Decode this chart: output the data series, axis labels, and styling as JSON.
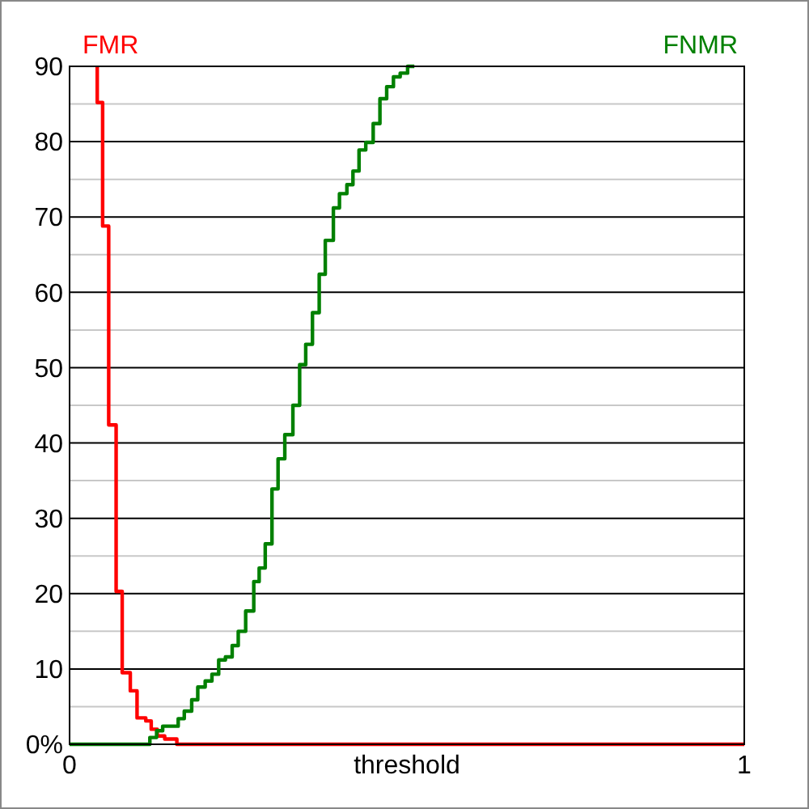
{
  "chart_data": {
    "type": "step",
    "xlabel": "threshold",
    "xlim": [
      0,
      1
    ],
    "xticks": [
      0,
      1
    ],
    "ylim": [
      0,
      90
    ],
    "yticks": [
      {
        "value": 0,
        "label": "0%"
      },
      {
        "value": 5,
        "label": null
      },
      10,
      {
        "value": 15,
        "label": null
      },
      20,
      {
        "value": 25,
        "label": null
      },
      30,
      {
        "value": 35,
        "label": null
      },
      40,
      {
        "value": 45,
        "label": null
      },
      50,
      {
        "value": 55,
        "label": null
      },
      60,
      {
        "value": 65,
        "label": null
      },
      70,
      {
        "value": 75,
        "label": null
      },
      80,
      {
        "value": 85,
        "label": null
      },
      90
    ],
    "grid": "y",
    "series": [
      {
        "name": "FMR",
        "color": "#ff0000",
        "x": [
          0.041,
          0.041,
          0.049,
          0.058,
          0.069,
          0.078,
          0.09,
          0.1,
          0.113,
          0.121,
          0.13,
          0.141,
          0.159,
          1
        ],
        "values": [
          90,
          85.2,
          68.8,
          42.4,
          20.3,
          9.5,
          7.1,
          3.5,
          3.1,
          2,
          1.1,
          0.7,
          0,
          0
        ]
      },
      {
        "name": "FNMR",
        "color": "#008000",
        "x": [
          0,
          0.119,
          0.129,
          0.138,
          0.161,
          0.17,
          0.181,
          0.19,
          0.201,
          0.211,
          0.221,
          0.231,
          0.241,
          0.25,
          0.261,
          0.273,
          0.281,
          0.29,
          0.3,
          0.309,
          0.319,
          0.331,
          0.341,
          0.35,
          0.36,
          0.37,
          0.379,
          0.391,
          0.4,
          0.411,
          0.42,
          0.429,
          0.439,
          0.45,
          0.46,
          0.47,
          0.48,
          0.49,
          0.501,
          0.511
        ],
        "values": [
          0,
          0.9,
          1.8,
          2.4,
          3.4,
          4.4,
          5.9,
          7.6,
          8.4,
          9.3,
          11.2,
          11.6,
          13.1,
          15,
          17.7,
          21.6,
          23.4,
          26.6,
          33.9,
          37.9,
          41.1,
          45,
          50.4,
          53.1,
          57.3,
          62.4,
          66.9,
          71.2,
          73.1,
          74.3,
          76.1,
          78.9,
          79.9,
          82.4,
          85.7,
          87.3,
          88.6,
          89.1,
          90,
          90
        ]
      }
    ]
  }
}
